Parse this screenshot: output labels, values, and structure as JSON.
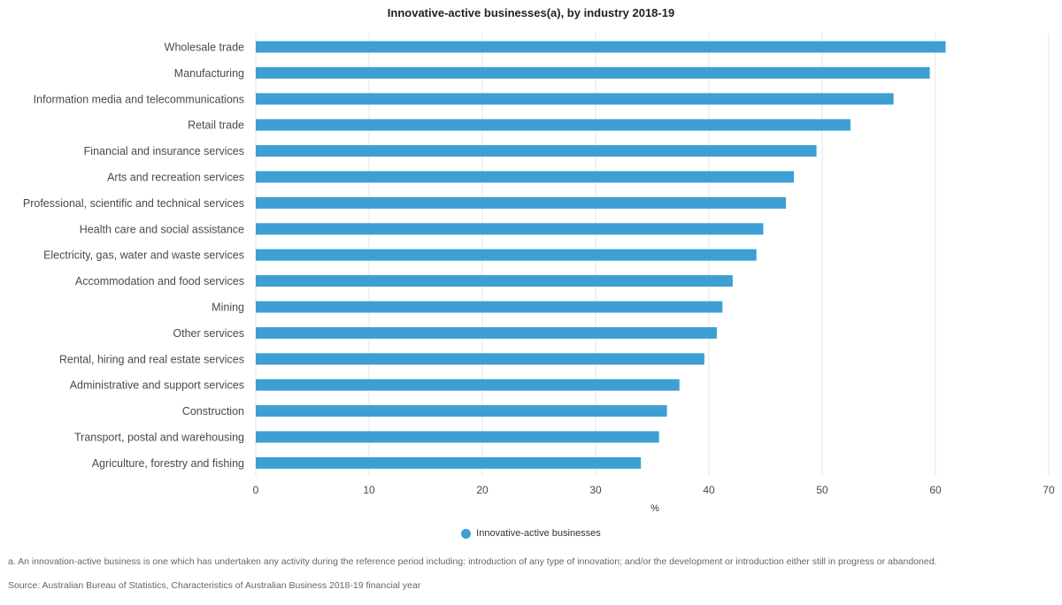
{
  "chart_data": {
    "type": "bar",
    "orientation": "horizontal",
    "title": "Innovative-active businesses(a), by industry 2018-19",
    "xlabel": "%",
    "ylabel": "",
    "xlim": [
      0,
      70
    ],
    "x_ticks": [
      0,
      10,
      20,
      30,
      40,
      50,
      60,
      70
    ],
    "grid": true,
    "legend_position": "bottom",
    "categories": [
      "Wholesale trade",
      "Manufacturing",
      "Information media and telecommunications",
      "Retail trade",
      "Financial and insurance services",
      "Arts and recreation services",
      "Professional, scientific and technical services",
      "Health care and social assistance",
      "Electricity, gas, water and waste services",
      "Accommodation and food services",
      "Mining",
      "Other services",
      "Rental, hiring and real estate services",
      "Administrative and support services",
      "Construction",
      "Transport, postal and warehousing",
      "Agriculture, forestry and fishing"
    ],
    "series": [
      {
        "name": "Innovative-active businesses",
        "color": "#3d9fd3",
        "values": [
          60.9,
          59.5,
          56.3,
          52.5,
          49.5,
          47.5,
          46.8,
          44.8,
          44.2,
          42.1,
          41.2,
          40.7,
          39.6,
          37.4,
          36.3,
          35.6,
          34.0
        ]
      }
    ]
  },
  "footnotes": {
    "note": "a. An innovation-active business is one which has undertaken any activity during the reference period including: introduction of any type of innovation; and/or the development or introduction either still in progress or abandoned.",
    "source": "Source: Australian Bureau of Statistics, Characteristics of Australian Business 2018-19 financial year"
  },
  "colors": {
    "bar": "#3d9fd3",
    "grid": "#e6e6e6",
    "axis_text": "#4a4a4a"
  }
}
